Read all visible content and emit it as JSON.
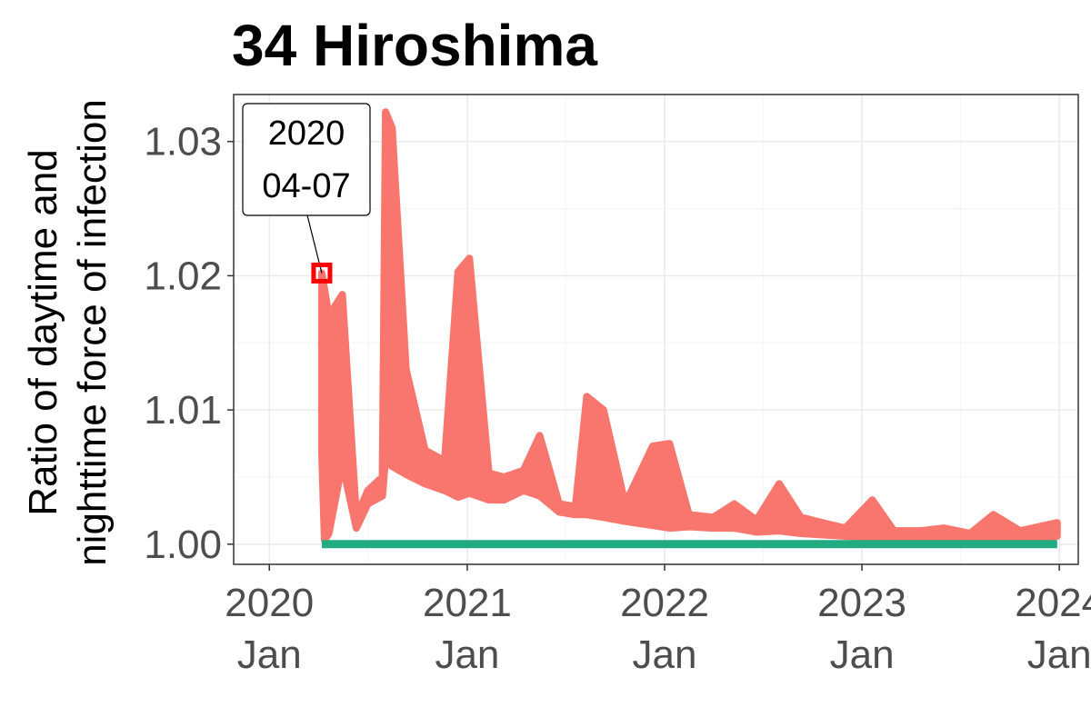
{
  "chart_data": {
    "type": "line",
    "title": "34 Hiroshima",
    "ylabel_lines": [
      "Ratio of daytime and",
      "nighttime force of infection"
    ],
    "xlabel": "",
    "xlim": [
      "2019-10-27",
      "2024-02-05"
    ],
    "ylim": [
      0.9985,
      1.0335
    ],
    "grid": true,
    "legend": "none",
    "y_ticks": [
      {
        "value": 1.0,
        "label": "1.00"
      },
      {
        "value": 1.01,
        "label": "1.01"
      },
      {
        "value": 1.02,
        "label": "1.02"
      },
      {
        "value": 1.03,
        "label": "1.03"
      }
    ],
    "x_ticks": [
      {
        "date": "2020-01-01",
        "year": "2020",
        "month": "Jan"
      },
      {
        "date": "2021-01-01",
        "year": "2021",
        "month": "Jan"
      },
      {
        "date": "2022-01-01",
        "year": "2022",
        "month": "Jan"
      },
      {
        "date": "2023-01-01",
        "year": "2023",
        "month": "Jan"
      },
      {
        "date": "2024-01-01",
        "year": "2024",
        "month": "Jan"
      }
    ],
    "series": [
      {
        "color": "#f8766d",
        "style": "band",
        "x": [
          "2020-04-07",
          "2020-04-12",
          "2020-04-20",
          "2020-05-15",
          "2020-06-10",
          "2020-07-01",
          "2020-07-28",
          "2020-08-03",
          "2020-08-15",
          "2020-09-10",
          "2020-10-15",
          "2020-11-20",
          "2020-12-15",
          "2021-01-05",
          "2021-02-10",
          "2021-03-10",
          "2021-04-15",
          "2021-05-15",
          "2021-06-20",
          "2021-07-20",
          "2021-08-10",
          "2021-09-10",
          "2021-10-20",
          "2021-12-10",
          "2022-01-10",
          "2022-02-15",
          "2022-04-01",
          "2022-05-10",
          "2022-06-20",
          "2022-08-01",
          "2022-09-10",
          "2022-10-20",
          "2022-12-01",
          "2023-01-20",
          "2023-03-01",
          "2023-04-20",
          "2023-06-01",
          "2023-07-20",
          "2023-09-01",
          "2023-10-20",
          "2023-12-28"
        ],
        "upper": [
          1.0202,
          1.019,
          1.017,
          1.0186,
          1.002,
          1.004,
          1.005,
          1.0322,
          1.031,
          1.013,
          1.007,
          1.0062,
          1.0203,
          1.0213,
          1.0053,
          1.005,
          1.0055,
          1.0081,
          1.003,
          1.0028,
          1.011,
          1.01,
          1.003,
          1.0073,
          1.0075,
          1.0022,
          1.002,
          1.003,
          1.0018,
          1.0045,
          1.002,
          1.0016,
          1.0012,
          1.0033,
          1.001,
          1.001,
          1.0012,
          1.0008,
          1.0022,
          1.001,
          1.0016
        ],
        "lower": [
          1.007,
          1.0003,
          1.0008,
          1.006,
          1.0012,
          1.003,
          1.0036,
          1.0065,
          1.0058,
          1.0052,
          1.0045,
          1.004,
          1.0035,
          1.0038,
          1.0033,
          1.0033,
          1.004,
          1.0036,
          1.0024,
          1.0022,
          1.0022,
          1.002,
          1.0017,
          1.0014,
          1.0012,
          1.0013,
          1.0012,
          1.0012,
          1.0009,
          1.001,
          1.0008,
          1.0007,
          1.0006,
          1.0005,
          1.0005,
          1.0004,
          1.0004,
          1.0004,
          1.0004,
          1.0003,
          1.0006
        ]
      },
      {
        "color": "#22aa80",
        "style": "line",
        "x": [
          "2020-04-07",
          "2023-12-28"
        ],
        "y": [
          1.0,
          1.0
        ]
      }
    ],
    "annotation": {
      "lines": [
        "2020",
        "04-07"
      ],
      "x": "2020-04-07",
      "y": 1.0202,
      "marker_color": "#ff0000"
    }
  }
}
